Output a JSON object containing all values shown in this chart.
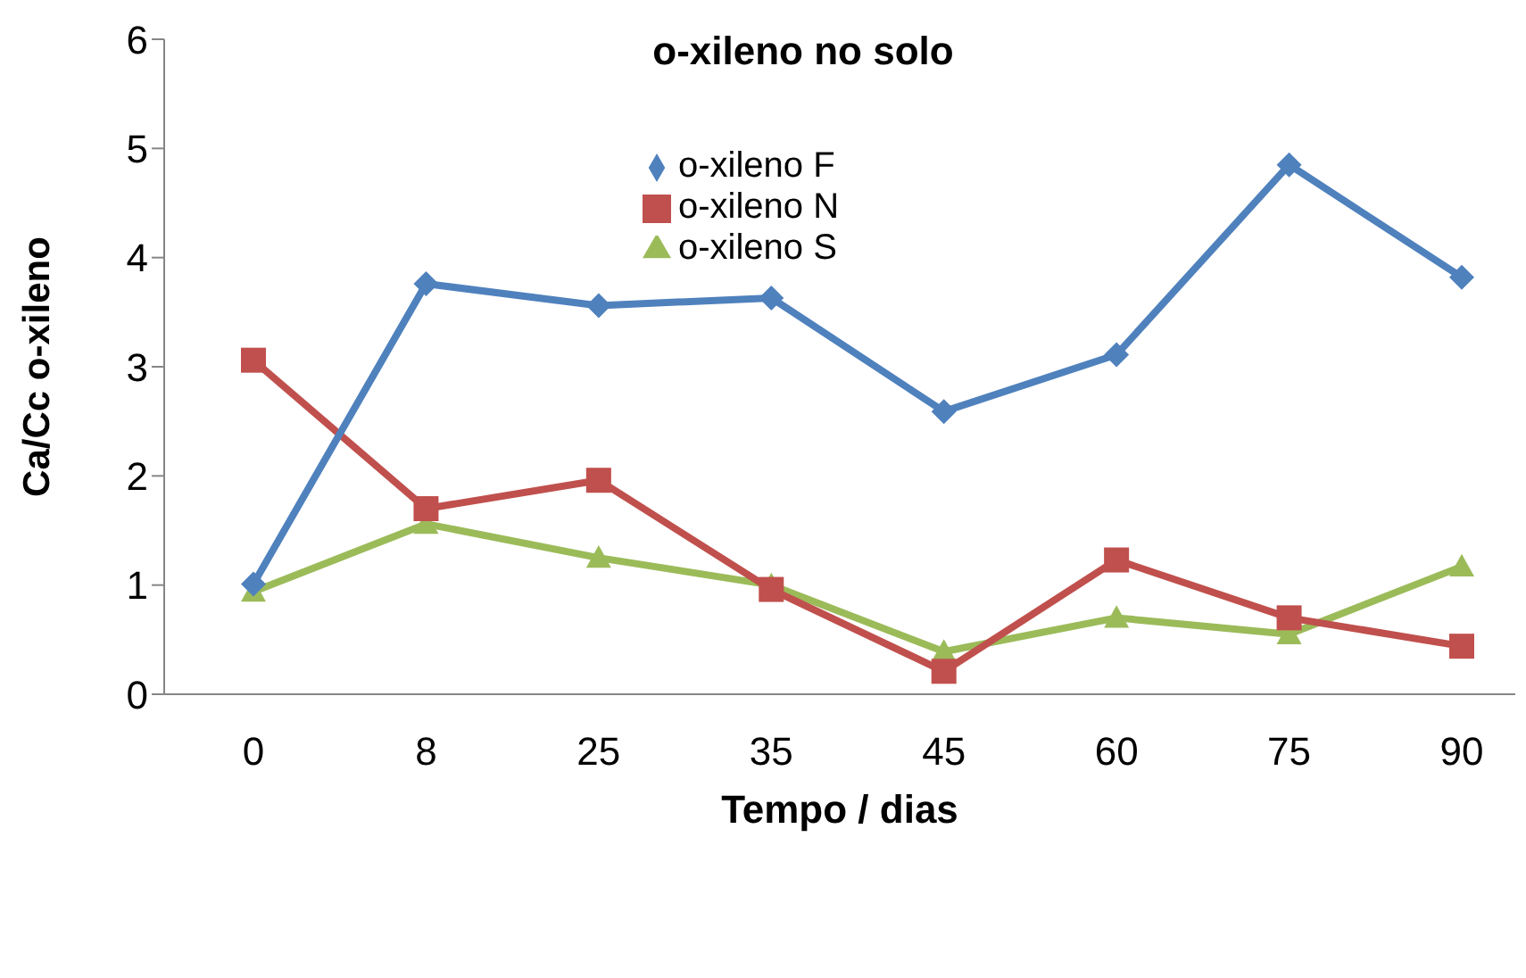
{
  "chart_data": {
    "type": "line",
    "title": "o-xileno no solo",
    "xlabel": "Tempo / dias",
    "ylabel": "Ca/Cc o-xileno",
    "categories": [
      "0",
      "8",
      "25",
      "35",
      "45",
      "60",
      "75",
      "90"
    ],
    "ylim": [
      0,
      6
    ],
    "yticks": [
      0,
      1,
      2,
      3,
      4,
      5,
      6
    ],
    "grid": false,
    "legend": "top",
    "series": [
      {
        "name": "o-xileno S",
        "color": "#9bbb59",
        "marker": "triangle",
        "values": [
          0.94,
          1.56,
          1.25,
          1.0,
          0.39,
          0.7,
          0.55,
          1.17
        ]
      },
      {
        "name": "o-xileno N",
        "color": "#c0504d",
        "marker": "square",
        "values": [
          3.06,
          1.7,
          1.96,
          0.96,
          0.21,
          1.23,
          0.7,
          0.44
        ]
      },
      {
        "name": "o-xileno F",
        "color": "#4f81bd",
        "marker": "diamond",
        "values": [
          1.01,
          3.76,
          3.56,
          3.63,
          2.59,
          3.11,
          4.85,
          3.82
        ]
      }
    ]
  }
}
